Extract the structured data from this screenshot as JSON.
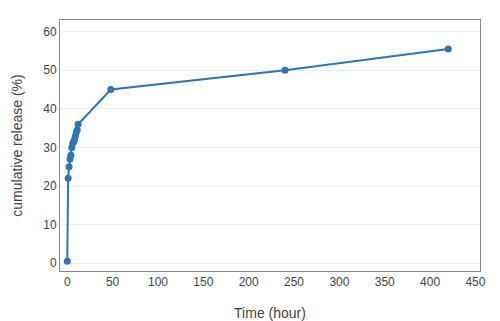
{
  "chart_data": {
    "type": "line",
    "xlabel": "Time (hour)",
    "ylabel": "cumulative release (%)",
    "x": [
      0,
      1,
      2,
      3,
      4,
      5,
      6,
      7,
      8,
      9,
      10,
      11,
      12,
      48,
      240,
      420
    ],
    "values": [
      0.5,
      22,
      25,
      27,
      28,
      30,
      31,
      31.5,
      32,
      33,
      34,
      34.5,
      36,
      45,
      50,
      55.5
    ],
    "color": "#2e75b6",
    "marker": "circle",
    "line_style": "solid",
    "xlim": [
      -8,
      455
    ],
    "ylim": [
      -2,
      63
    ],
    "xticks": [
      0,
      50,
      100,
      150,
      200,
      250,
      300,
      350,
      400,
      450
    ],
    "yticks": [
      0,
      10,
      20,
      30,
      40,
      50,
      60
    ],
    "grid": "y"
  }
}
